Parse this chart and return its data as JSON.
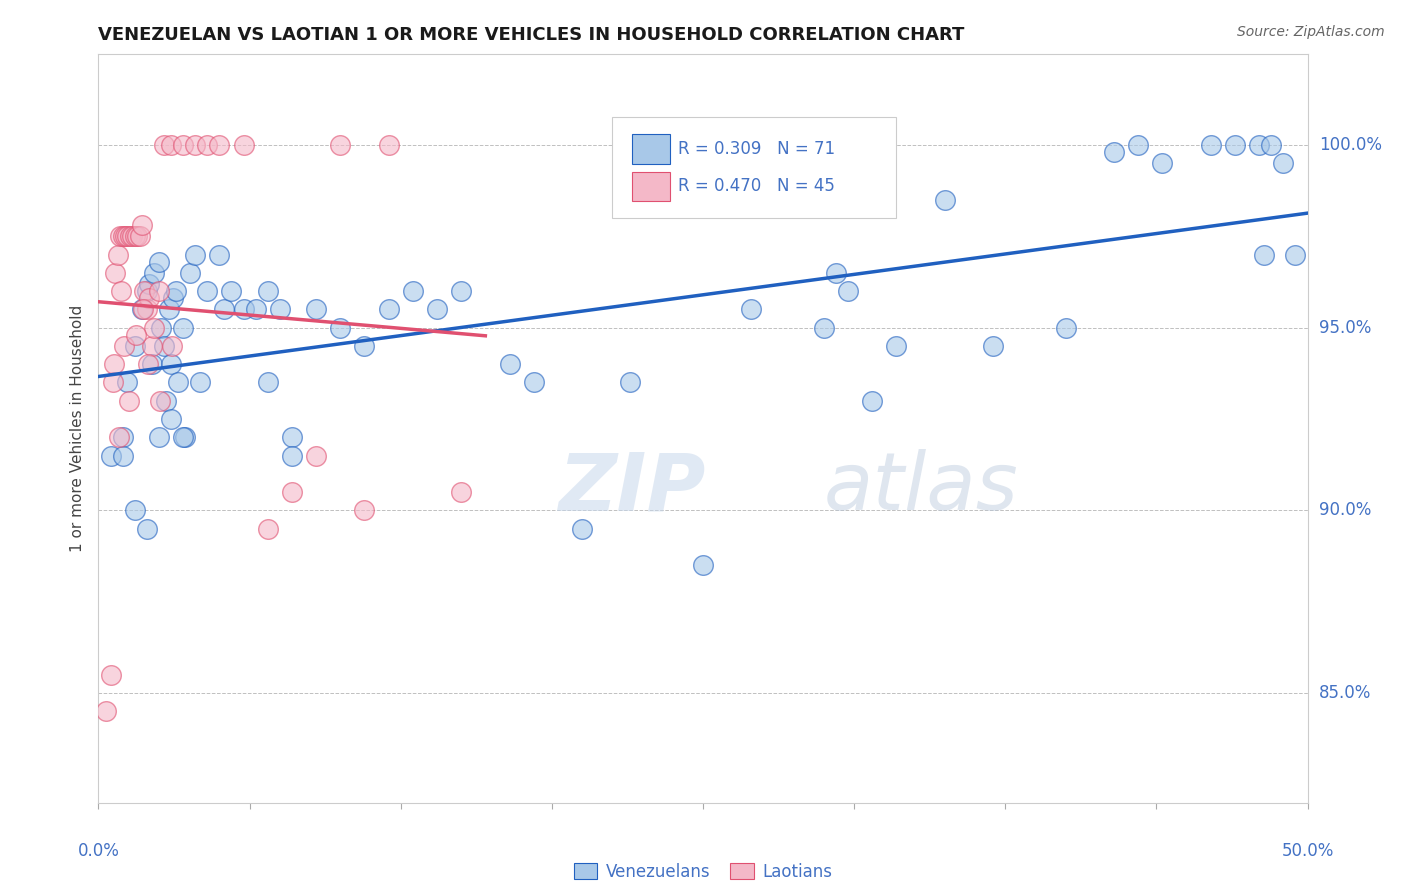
{
  "title": "VENEZUELAN VS LAOTIAN 1 OR MORE VEHICLES IN HOUSEHOLD CORRELATION CHART",
  "source": "Source: ZipAtlas.com",
  "ylabel": "1 or more Vehicles in Household",
  "xlim": [
    0.0,
    50.0
  ],
  "ylim": [
    82.0,
    102.5
  ],
  "watermark_zip": "ZIP",
  "watermark_atlas": "atlas",
  "legend_R_blue": "R = 0.309",
  "legend_N_blue": "N = 71",
  "legend_R_pink": "R = 0.470",
  "legend_N_pink": "N = 45",
  "blue_color": "#a8c8e8",
  "pink_color": "#f4b8c8",
  "trend_blue": "#2060c0",
  "trend_pink": "#e05070",
  "ytick_vals": [
    85.0,
    90.0,
    95.0,
    100.0
  ],
  "venezuelan_x": [
    0.5,
    1.0,
    1.2,
    1.5,
    1.8,
    2.0,
    2.1,
    2.2,
    2.3,
    2.5,
    2.6,
    2.7,
    2.8,
    2.9,
    3.0,
    3.1,
    3.2,
    3.3,
    3.5,
    3.6,
    3.8,
    4.0,
    4.2,
    4.5,
    5.0,
    5.2,
    5.5,
    6.0,
    6.5,
    7.0,
    7.5,
    8.0,
    9.0,
    10.0,
    11.0,
    12.0,
    13.0,
    14.0,
    15.0,
    17.0,
    18.0,
    20.0,
    22.0,
    25.0,
    27.0,
    30.0,
    33.0,
    35.0,
    37.0,
    40.0,
    42.0,
    43.0,
    44.0,
    46.0,
    47.0,
    48.0,
    48.5,
    49.0,
    49.5,
    30.5,
    31.0,
    32.0,
    1.0,
    1.5,
    2.0,
    2.5,
    3.0,
    3.5,
    7.0,
    8.0,
    48.2
  ],
  "venezuelan_y": [
    91.5,
    92.0,
    93.5,
    94.5,
    95.5,
    96.0,
    96.2,
    94.0,
    96.5,
    96.8,
    95.0,
    94.5,
    93.0,
    95.5,
    94.0,
    95.8,
    96.0,
    93.5,
    95.0,
    92.0,
    96.5,
    97.0,
    93.5,
    96.0,
    97.0,
    95.5,
    96.0,
    95.5,
    95.5,
    93.5,
    95.5,
    92.0,
    95.5,
    95.0,
    94.5,
    95.5,
    96.0,
    95.5,
    96.0,
    94.0,
    93.5,
    89.5,
    93.5,
    88.5,
    95.5,
    95.0,
    94.5,
    98.5,
    94.5,
    95.0,
    99.8,
    100.0,
    99.5,
    100.0,
    100.0,
    100.0,
    100.0,
    99.5,
    97.0,
    96.5,
    96.0,
    93.0,
    91.5,
    90.0,
    89.5,
    92.0,
    92.5,
    92.0,
    96.0,
    91.5,
    97.0
  ],
  "laotian_x": [
    0.3,
    0.5,
    0.6,
    0.7,
    0.8,
    0.9,
    1.0,
    1.1,
    1.2,
    1.3,
    1.4,
    1.5,
    1.6,
    1.7,
    1.8,
    1.9,
    2.0,
    2.1,
    2.2,
    2.3,
    2.5,
    2.7,
    3.0,
    3.5,
    4.0,
    4.5,
    5.0,
    6.0,
    7.0,
    8.0,
    9.0,
    10.0,
    12.0,
    1.05,
    1.25,
    1.55,
    1.85,
    2.05,
    2.55,
    3.05,
    0.85,
    0.65,
    0.95,
    11.0,
    15.0
  ],
  "laotian_y": [
    84.5,
    85.5,
    93.5,
    96.5,
    97.0,
    97.5,
    97.5,
    97.5,
    97.5,
    97.5,
    97.5,
    97.5,
    97.5,
    97.5,
    97.8,
    96.0,
    95.5,
    95.8,
    94.5,
    95.0,
    96.0,
    100.0,
    100.0,
    100.0,
    100.0,
    100.0,
    100.0,
    100.0,
    89.5,
    90.5,
    91.5,
    100.0,
    100.0,
    94.5,
    93.0,
    94.8,
    95.5,
    94.0,
    93.0,
    94.5,
    92.0,
    94.0,
    96.0,
    90.0,
    90.5
  ]
}
